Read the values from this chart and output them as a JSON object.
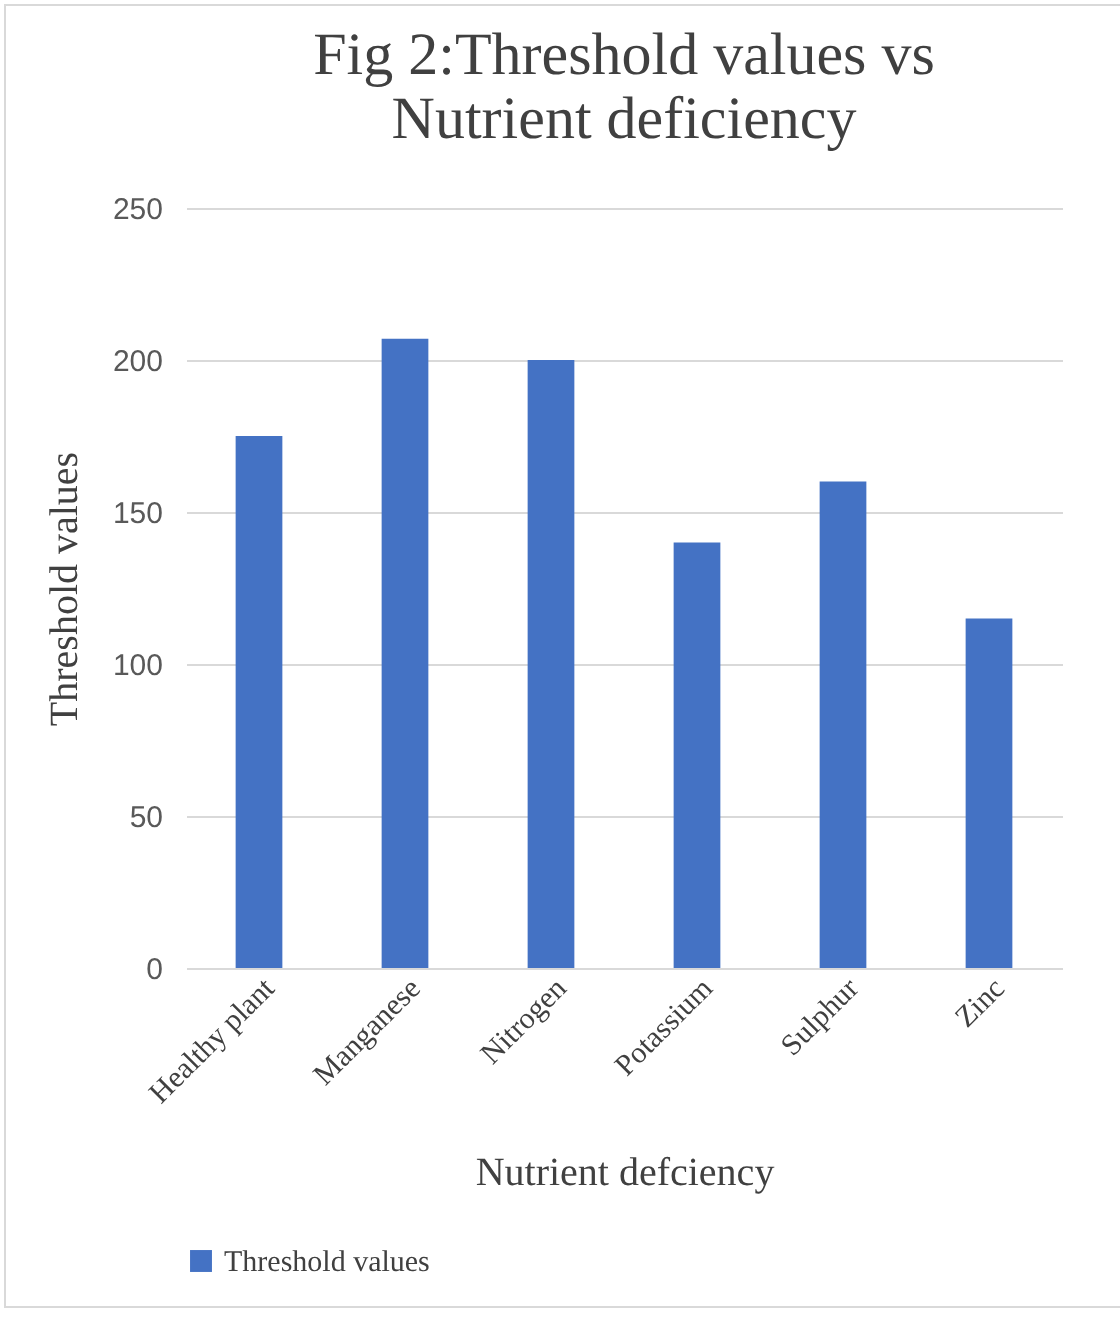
{
  "chart_data": {
    "type": "bar",
    "title": [
      "Fig 2:Threshold values vs",
      "Nutrient deficiency"
    ],
    "xlabel": "Nutrient defciency",
    "ylabel": "Threshold values",
    "categories": [
      "Healthy plant",
      "Manganese",
      "Nitrogen",
      "Potassium",
      "Sulphur",
      "Zinc"
    ],
    "series": [
      {
        "name": "Threshold values",
        "color": "#4472c4",
        "values": [
          175,
          207,
          200,
          140,
          160,
          115
        ]
      }
    ],
    "ylim": [
      0,
      250
    ],
    "yticks": [
      0,
      50,
      100,
      150,
      200,
      250
    ],
    "grid": "y",
    "legend": "bottom"
  }
}
